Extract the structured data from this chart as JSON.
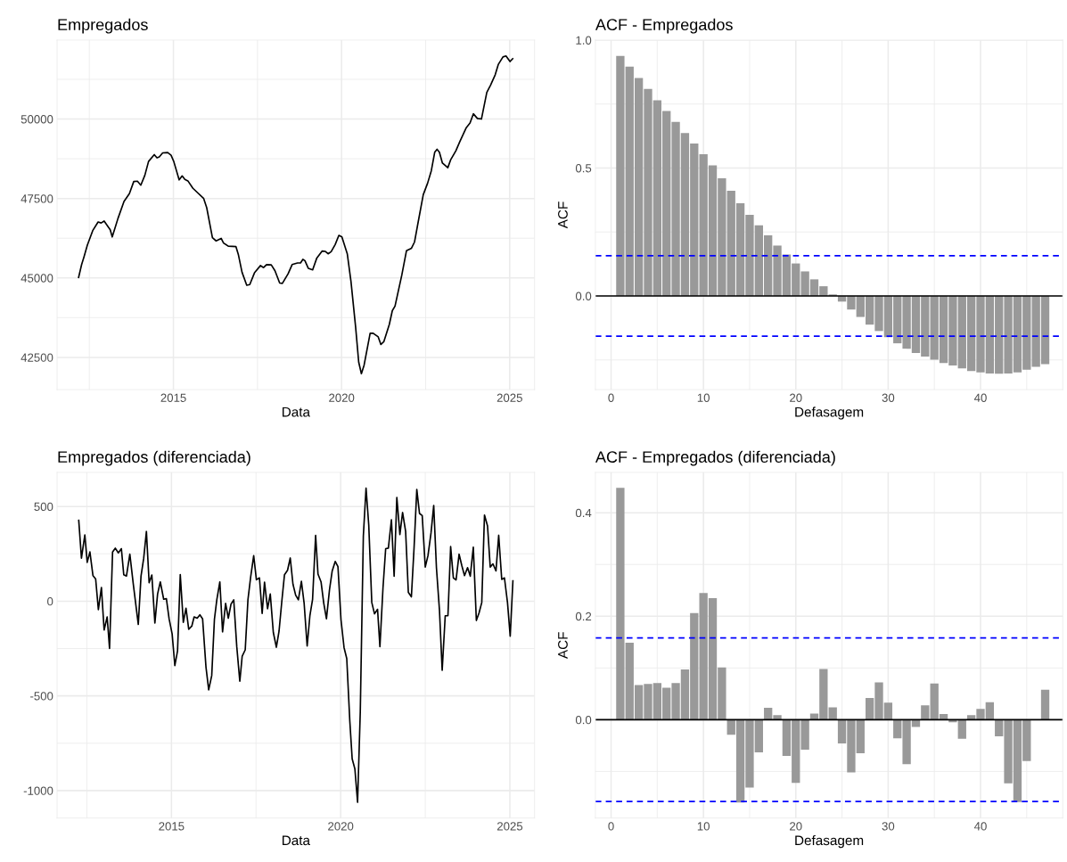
{
  "chart_data": [
    {
      "type": "line",
      "title": "Empregados",
      "xlabel": "Data",
      "color": "#000000",
      "grid": true,
      "line_style": "solid",
      "x": [
        2012.18,
        2012.27,
        2012.34,
        2012.44,
        2012.6,
        2012.76,
        2012.85,
        2012.94,
        2013.12,
        2013.18,
        2013.35,
        2013.53,
        2013.69,
        2013.82,
        2013.93,
        2014.03,
        2014.15,
        2014.26,
        2014.43,
        2014.51,
        2014.58,
        2014.68,
        2014.83,
        2014.93,
        2015.01,
        2015.17,
        2015.26,
        2015.34,
        2015.43,
        2015.58,
        2015.9,
        2015.99,
        2016.16,
        2016.27,
        2016.42,
        2016.49,
        2016.63,
        2016.86,
        2016.93,
        2017.04,
        2017.18,
        2017.27,
        2017.41,
        2017.59,
        2017.68,
        2017.77,
        2017.91,
        2018.02,
        2018.16,
        2018.24,
        2018.41,
        2018.53,
        2018.69,
        2018.78,
        2018.85,
        2018.91,
        2019.01,
        2019.14,
        2019.26,
        2019.42,
        2019.52,
        2019.6,
        2019.69,
        2019.81,
        2019.92,
        2020.01,
        2020.17,
        2020.28,
        2020.42,
        2020.51,
        2020.59,
        2020.67,
        2020.85,
        2020.94,
        2021.09,
        2021.17,
        2021.26,
        2021.42,
        2021.51,
        2021.59,
        2021.79,
        2021.93,
        2022.08,
        2022.17,
        2022.29,
        2022.43,
        2022.56,
        2022.67,
        2022.77,
        2022.84,
        2022.91,
        2023.0,
        2023.16,
        2023.25,
        2023.4,
        2023.52,
        2023.71,
        2023.82,
        2023.92,
        2024.04,
        2024.16,
        2024.32,
        2024.43,
        2024.57,
        2024.66,
        2024.8,
        2024.89,
        2025.01,
        2025.09
      ],
      "values": [
        45015,
        45420,
        45660,
        46030,
        46490,
        46760,
        46730,
        46790,
        46515,
        46290,
        46870,
        47405,
        47650,
        48035,
        48045,
        47920,
        48230,
        48665,
        48880,
        48780,
        48810,
        48935,
        48945,
        48860,
        48665,
        48085,
        48210,
        48100,
        48055,
        47820,
        47500,
        47210,
        46265,
        46165,
        46245,
        46100,
        46000,
        45985,
        45740,
        45180,
        44770,
        44790,
        45160,
        45390,
        45325,
        45420,
        45410,
        45225,
        44840,
        44830,
        45130,
        45420,
        45470,
        45470,
        45585,
        45545,
        45305,
        45255,
        45615,
        45845,
        45835,
        45760,
        45825,
        46050,
        46340,
        46290,
        45760,
        44890,
        43435,
        42350,
        41985,
        42255,
        43260,
        43260,
        43145,
        42905,
        43000,
        43535,
        43970,
        44115,
        45080,
        45855,
        45935,
        46130,
        46825,
        47620,
        47985,
        48375,
        48955,
        49050,
        48955,
        48615,
        48470,
        48730,
        49000,
        49295,
        49730,
        49875,
        50165,
        50020,
        50000,
        50840,
        51065,
        51395,
        51715,
        51955,
        51985,
        51810,
        51900
      ],
      "xlim": [
        2011.54,
        2025.74
      ],
      "ylim": [
        41485,
        52485
      ],
      "xticks": [
        {
          "value": 2012.5,
          "label": null
        },
        2015,
        {
          "value": 2017.5,
          "label": null
        },
        2020,
        {
          "value": 2022.5,
          "label": null
        },
        2025
      ],
      "yticks": [
        42500,
        {
          "value": 43750,
          "label": null
        },
        45000,
        {
          "value": 46250,
          "label": null
        },
        47500,
        {
          "value": 48750,
          "label": null
        },
        50000,
        {
          "value": 51250,
          "label": null
        }
      ]
    },
    {
      "type": "bar",
      "title": "ACF - Empregados",
      "xlabel": "Defasagem",
      "ylabel": "ACF",
      "color": "#999999",
      "grid": true,
      "x": [
        1,
        2,
        3,
        4,
        5,
        6,
        7,
        8,
        9,
        10,
        11,
        12,
        13,
        14,
        15,
        16,
        17,
        18,
        19,
        20,
        21,
        22,
        23,
        24,
        25,
        26,
        27,
        28,
        29,
        30,
        31,
        32,
        33,
        34,
        35,
        36,
        37,
        38,
        39,
        40,
        41,
        42,
        43,
        44,
        45,
        46,
        47
      ],
      "values": [
        0.938,
        0.896,
        0.852,
        0.809,
        0.765,
        0.723,
        0.68,
        0.637,
        0.596,
        0.554,
        0.51,
        0.46,
        0.411,
        0.362,
        0.317,
        0.276,
        0.237,
        0.197,
        0.162,
        0.127,
        0.096,
        0.065,
        0.038,
        0.006,
        -0.022,
        -0.053,
        -0.082,
        -0.112,
        -0.137,
        -0.161,
        -0.185,
        -0.206,
        -0.223,
        -0.237,
        -0.249,
        -0.262,
        -0.272,
        -0.283,
        -0.293,
        -0.299,
        -0.303,
        -0.304,
        -0.303,
        -0.299,
        -0.288,
        -0.277,
        -0.266
      ],
      "xlim": [
        -1.7,
        48.9
      ],
      "ylim": [
        -0.366,
        1.0
      ],
      "xticks": [
        0,
        {
          "value": 5,
          "label": null
        },
        10,
        {
          "value": 15,
          "label": null
        },
        20,
        {
          "value": 25,
          "label": null
        },
        30,
        {
          "value": 35,
          "label": null
        },
        40,
        {
          "value": 45,
          "label": null
        }
      ],
      "yticks": [
        {
          "value": -0.25,
          "label": null
        },
        {
          "value": 0,
          "label": "0.0"
        },
        {
          "value": 0.25,
          "label": null
        },
        0.5,
        {
          "value": 0.75,
          "label": null
        },
        {
          "value": 1.0,
          "label": "1.0"
        }
      ],
      "ref_lines": [
        {
          "axis": "y",
          "value": 0,
          "color": "#000000",
          "line_style": "solid"
        },
        {
          "axis": "y",
          "value": 0.157,
          "color": "#0000ff",
          "line_style": "dashed"
        },
        {
          "axis": "y",
          "value": -0.157,
          "color": "#0000ff",
          "line_style": "dashed"
        }
      ]
    },
    {
      "type": "line",
      "title": "Empregados (diferenciada)",
      "xlabel": "Data",
      "color": "#000000",
      "grid": true,
      "line_style": "solid",
      "x": [
        2012.26,
        2012.34,
        2012.44,
        2012.51,
        2012.59,
        2012.68,
        2012.76,
        2012.84,
        2012.93,
        2013.01,
        2013.1,
        2013.17,
        2013.26,
        2013.34,
        2013.43,
        2013.52,
        2013.59,
        2013.67,
        2013.77,
        2013.87,
        2014.02,
        2014.1,
        2014.18,
        2014.26,
        2014.34,
        2014.42,
        2014.51,
        2014.59,
        2014.67,
        2014.77,
        2014.85,
        2014.93,
        2015.02,
        2015.1,
        2015.18,
        2015.26,
        2015.35,
        2015.43,
        2015.51,
        2015.6,
        2015.67,
        2015.76,
        2015.84,
        2015.92,
        2016.02,
        2016.1,
        2016.19,
        2016.27,
        2016.34,
        2016.43,
        2016.51,
        2016.6,
        2016.68,
        2016.76,
        2016.84,
        2016.93,
        2017.02,
        2017.09,
        2017.18,
        2017.26,
        2017.34,
        2017.43,
        2017.51,
        2017.6,
        2017.68,
        2017.75,
        2017.84,
        2017.92,
        2018.01,
        2018.1,
        2018.18,
        2018.26,
        2018.34,
        2018.43,
        2018.51,
        2018.59,
        2018.67,
        2018.75,
        2018.84,
        2018.92,
        2019.01,
        2019.09,
        2019.17,
        2019.26,
        2019.33,
        2019.42,
        2019.5,
        2019.58,
        2019.67,
        2019.75,
        2019.84,
        2019.92,
        2020.01,
        2020.1,
        2020.18,
        2020.27,
        2020.34,
        2020.42,
        2020.5,
        2020.58,
        2020.67,
        2020.75,
        2020.83,
        2020.92,
        2021.0,
        2021.09,
        2021.16,
        2021.25,
        2021.33,
        2021.41,
        2021.5,
        2021.58,
        2021.66,
        2021.75,
        2021.83,
        2021.92,
        2022.0,
        2022.09,
        2022.17,
        2022.25,
        2022.33,
        2022.41,
        2022.5,
        2022.58,
        2022.67,
        2022.75,
        2022.83,
        2022.92,
        2023.0,
        2023.09,
        2023.17,
        2023.25,
        2023.33,
        2023.41,
        2023.5,
        2023.58,
        2023.66,
        2023.75,
        2023.83,
        2023.92,
        2024.01,
        2024.09,
        2024.17,
        2024.25,
        2024.34,
        2024.42,
        2024.5,
        2024.59,
        2024.67,
        2024.76,
        2024.84,
        2024.93,
        2025.01,
        2025.09
      ],
      "values": [
        427,
        227,
        350,
        205,
        260,
        135,
        117,
        -45,
        72,
        -152,
        -83,
        -250,
        260,
        280,
        255,
        277,
        140,
        133,
        248,
        93,
        -123,
        132,
        227,
        368,
        97,
        138,
        -115,
        38,
        102,
        10,
        13,
        -93,
        -173,
        -340,
        -262,
        140,
        -112,
        -37,
        -148,
        -132,
        -83,
        -90,
        -72,
        -93,
        -348,
        -468,
        -393,
        -95,
        7,
        102,
        -162,
        -12,
        -90,
        -15,
        7,
        -240,
        -423,
        -290,
        -257,
        7,
        127,
        240,
        113,
        123,
        -65,
        100,
        -40,
        38,
        -165,
        -243,
        -157,
        -3,
        140,
        163,
        228,
        90,
        32,
        7,
        105,
        -10,
        -237,
        -78,
        10,
        347,
        143,
        102,
        -10,
        -93,
        60,
        160,
        210,
        182,
        -98,
        -245,
        -303,
        -632,
        -832,
        -885,
        -1062,
        -582,
        343,
        597,
        402,
        -7,
        -67,
        -43,
        -240,
        68,
        277,
        280,
        430,
        132,
        548,
        352,
        468,
        368,
        47,
        23,
        285,
        590,
        463,
        452,
        180,
        240,
        360,
        505,
        177,
        -48,
        -365,
        -77,
        -77,
        288,
        123,
        112,
        248,
        188,
        135,
        177,
        132,
        285,
        -102,
        -62,
        -7,
        455,
        397,
        180,
        197,
        160,
        348,
        115,
        123,
        -7,
        -185,
        107
      ],
      "xlim": [
        2011.62,
        2025.73
      ],
      "ylim": [
        -1145,
        680
      ],
      "xticks": [
        {
          "value": 2012.5,
          "label": null
        },
        2015,
        {
          "value": 2017.5,
          "label": null
        },
        2020,
        {
          "value": 2022.5,
          "label": null
        },
        2025
      ],
      "yticks": [
        -1000,
        {
          "value": -750,
          "label": null
        },
        -500,
        {
          "value": -250,
          "label": null
        },
        0,
        {
          "value": 250,
          "label": null
        },
        500
      ]
    },
    {
      "type": "bar",
      "title": "ACF - Empregados (diferenciada)",
      "xlabel": "Defasagem",
      "ylabel": "ACF",
      "color": "#999999",
      "grid": true,
      "x": [
        1,
        2,
        3,
        4,
        5,
        6,
        7,
        8,
        9,
        10,
        11,
        12,
        13,
        14,
        15,
        16,
        17,
        18,
        19,
        20,
        21,
        22,
        23,
        24,
        25,
        26,
        27,
        28,
        29,
        30,
        31,
        32,
        33,
        34,
        35,
        36,
        37,
        38,
        39,
        40,
        41,
        42,
        43,
        44,
        45,
        46,
        47
      ],
      "values": [
        0.448,
        0.149,
        0.067,
        0.069,
        0.071,
        0.062,
        0.071,
        0.097,
        0.206,
        0.245,
        0.235,
        0.101,
        -0.029,
        -0.16,
        -0.131,
        -0.063,
        0.023,
        0.009,
        -0.07,
        -0.122,
        -0.058,
        0.012,
        0.098,
        0.024,
        -0.046,
        -0.102,
        -0.065,
        0.042,
        0.072,
        0.033,
        -0.036,
        -0.086,
        -0.014,
        0.028,
        0.07,
        0.011,
        -0.005,
        -0.037,
        0.009,
        0.021,
        0.034,
        -0.032,
        -0.123,
        -0.159,
        -0.08,
        0.0,
        0.058
      ],
      "xlim": [
        -1.7,
        48.9
      ],
      "ylim": [
        -0.19,
        0.478
      ],
      "xticks": [
        0,
        {
          "value": 5,
          "label": null
        },
        10,
        {
          "value": 15,
          "label": null
        },
        20,
        {
          "value": 25,
          "label": null
        },
        30,
        {
          "value": 35,
          "label": null
        },
        40,
        {
          "value": 45,
          "label": null
        }
      ],
      "yticks": [
        {
          "value": -0.1,
          "label": null
        },
        {
          "value": 0,
          "label": "0.0"
        },
        {
          "value": 0.1,
          "label": null
        },
        0.2,
        {
          "value": 0.3,
          "label": null
        },
        0.4
      ],
      "ref_lines": [
        {
          "axis": "y",
          "value": 0,
          "color": "#000000",
          "line_style": "solid"
        },
        {
          "axis": "y",
          "value": 0.158,
          "color": "#0000ff",
          "line_style": "dashed"
        },
        {
          "axis": "y",
          "value": -0.158,
          "color": "#0000ff",
          "line_style": "dashed"
        }
      ]
    }
  ]
}
